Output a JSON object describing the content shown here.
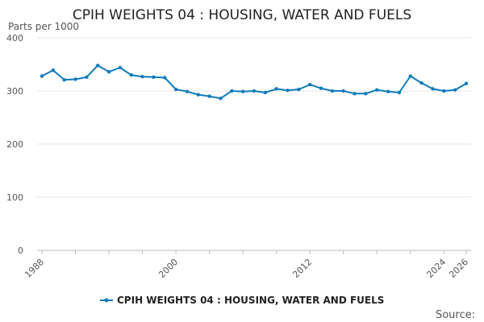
{
  "chart_data": {
    "type": "line",
    "title": "CPIH WEIGHTS 04 : HOUSING, WATER AND FUELS",
    "ylabel": "Parts per 1000",
    "xlabel": "",
    "ylim": [
      0,
      400
    ],
    "yticks": [
      0,
      100,
      200,
      300,
      400
    ],
    "xlim": [
      1988,
      2026
    ],
    "xticks_labeled": [
      1988,
      2000,
      2012,
      2024,
      2026
    ],
    "grid": true,
    "legend_position": "bottom",
    "series": [
      {
        "name": "CPIH WEIGHTS 04 : HOUSING, WATER AND FUELS",
        "color": "#0f7bbb",
        "x": [
          1988,
          1989,
          1990,
          1991,
          1992,
          1993,
          1994,
          1995,
          1996,
          1997,
          1998,
          1999,
          2000,
          2001,
          2002,
          2003,
          2004,
          2005,
          2006,
          2007,
          2008,
          2009,
          2010,
          2011,
          2012,
          2013,
          2014,
          2015,
          2016,
          2017,
          2018,
          2019,
          2020,
          2021,
          2022,
          2023,
          2024,
          2025,
          2026
        ],
        "values": [
          328,
          339,
          321,
          322,
          326,
          348,
          336,
          344,
          330,
          327,
          326,
          325,
          303,
          299,
          293,
          290,
          286,
          300,
          299,
          300,
          297,
          304,
          301,
          303,
          312,
          305,
          300,
          300,
          295,
          295,
          302,
          299,
          297,
          328,
          315,
          304,
          300,
          302,
          314
        ]
      }
    ]
  },
  "footer": {
    "source_label": "Source:"
  }
}
